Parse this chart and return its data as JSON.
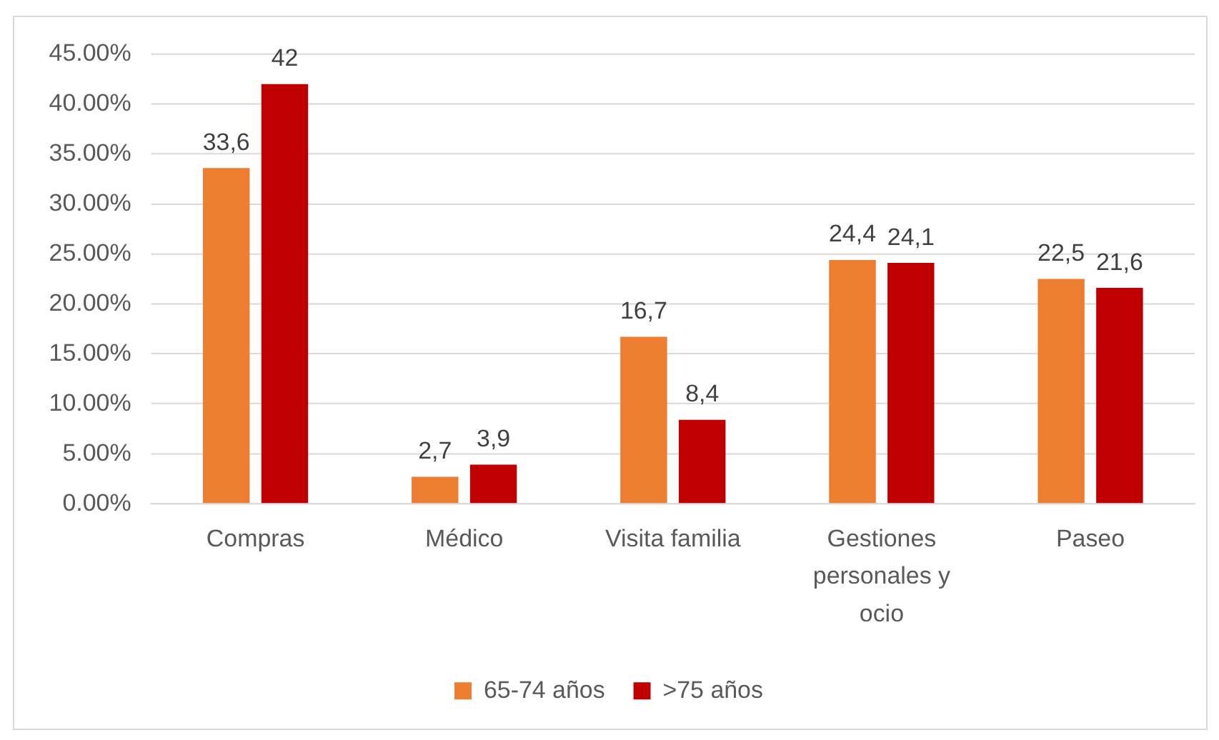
{
  "chart_data": {
    "type": "bar",
    "categories": [
      "Compras",
      "Médico",
      "Visita familia",
      "Gestiones personales y ocio",
      "Paseo"
    ],
    "series": [
      {
        "name": "65-74 años",
        "color": "#ed7d31",
        "values": [
          33.6,
          2.7,
          16.7,
          24.4,
          22.5
        ],
        "value_labels": [
          "33,6",
          "2,7",
          "16,7",
          "24,4",
          "22,5"
        ]
      },
      {
        "name": ">75 años",
        "color": "#c00000",
        "values": [
          42,
          3.9,
          8.4,
          24.1,
          21.6
        ],
        "value_labels": [
          "42",
          "3,9",
          "8,4",
          "24,1",
          "21,6"
        ]
      }
    ],
    "ylim": [
      0,
      45
    ],
    "yticks": [
      {
        "value": 0,
        "label": "0.00%"
      },
      {
        "value": 5,
        "label": "5.00%"
      },
      {
        "value": 10,
        "label": "10.00%"
      },
      {
        "value": 15,
        "label": "15.00%"
      },
      {
        "value": 20,
        "label": "20.00%"
      },
      {
        "value": 25,
        "label": "25.00%"
      },
      {
        "value": 30,
        "label": "30.00%"
      },
      {
        "value": 35,
        "label": "35.00%"
      },
      {
        "value": 40,
        "label": "40.00%"
      },
      {
        "value": 45,
        "label": "45.00%"
      }
    ],
    "grid": "y",
    "legend": "bottom"
  }
}
